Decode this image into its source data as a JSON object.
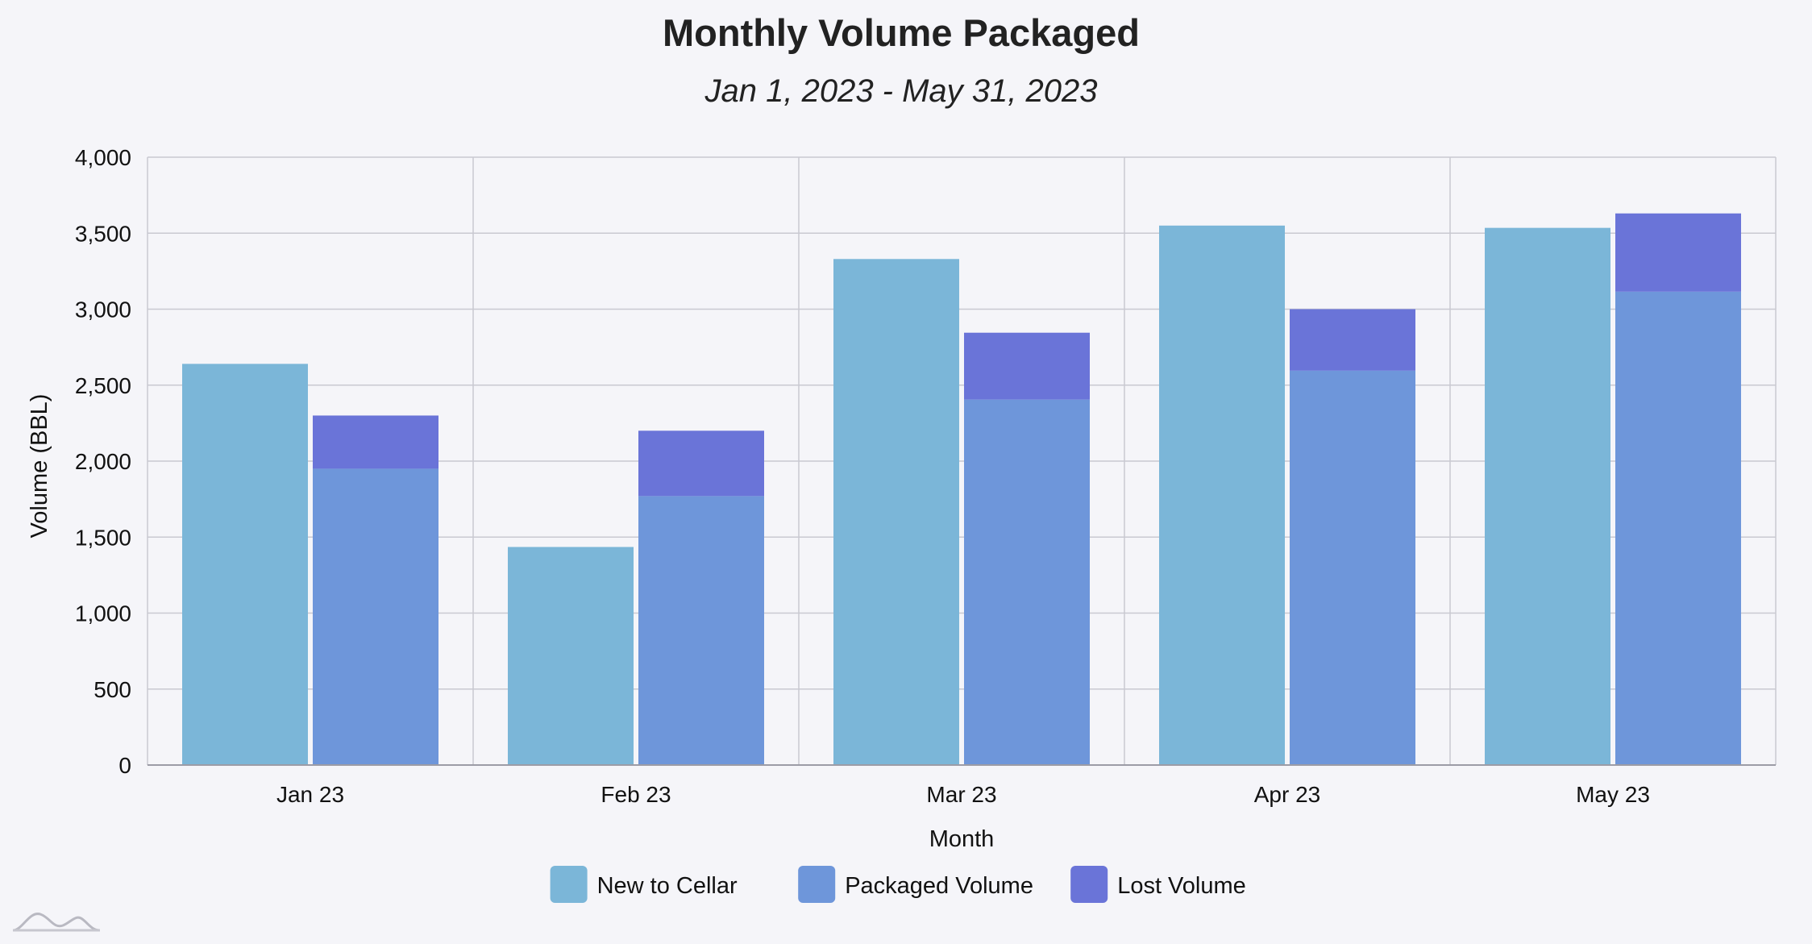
{
  "chart_data": {
    "type": "bar",
    "title": "Monthly Volume Packaged",
    "subtitle": "Jan 1, 2023 - May 31, 2023",
    "xlabel": "Month",
    "ylabel": "Volume (BBL)",
    "categories": [
      "Jan 23",
      "Feb 23",
      "Mar 23",
      "Apr 23",
      "May 23"
    ],
    "ylim": [
      0,
      4000
    ],
    "yticks": [
      0,
      500,
      1000,
      1500,
      2000,
      2500,
      3000,
      3500,
      4000
    ],
    "ytick_labels": [
      "0",
      "500",
      "1,000",
      "1,500",
      "2,000",
      "2,500",
      "3,000",
      "3,500",
      "4,000"
    ],
    "grid": true,
    "legend_position": "bottom",
    "stacked_groups": [
      {
        "group": "cellar",
        "series": [
          "New to Cellar"
        ]
      },
      {
        "group": "packaged",
        "series": [
          "Packaged Volume",
          "Lost Volume"
        ]
      }
    ],
    "series": [
      {
        "name": "New to Cellar",
        "stack": "cellar",
        "color": "#7bb6d8",
        "values": [
          2640,
          1435,
          3330,
          3550,
          3535
        ]
      },
      {
        "name": "Packaged Volume",
        "stack": "packaged",
        "color": "#6e96da",
        "values": [
          1950,
          1770,
          2405,
          2595,
          3115
        ]
      },
      {
        "name": "Lost Volume",
        "stack": "packaged",
        "color": "#6a74d8",
        "values": [
          350,
          430,
          440,
          405,
          515
        ]
      }
    ]
  },
  "logo": {
    "name": "app-logo-icon"
  }
}
